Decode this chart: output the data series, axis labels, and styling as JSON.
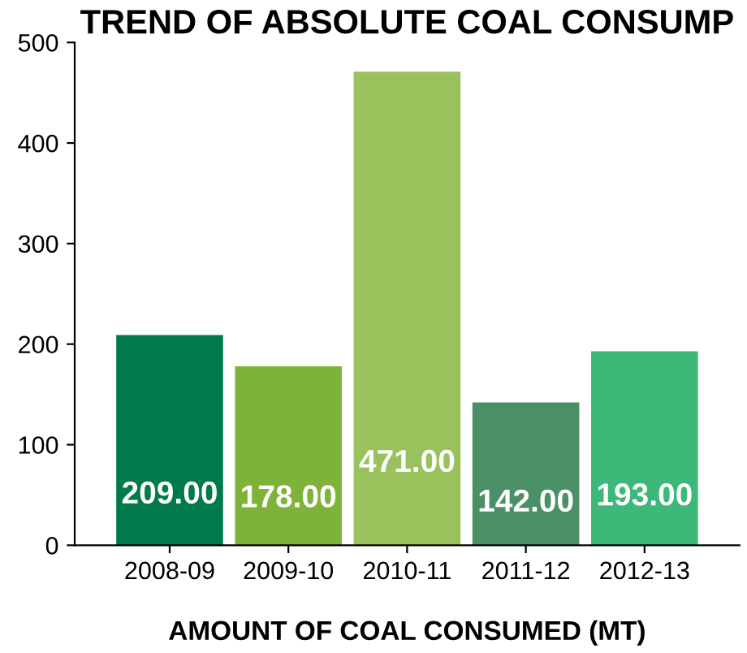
{
  "chart_data": {
    "type": "bar",
    "title": "TREND OF ABSOLUTE COAL CONSUMP",
    "xlabel": "AMOUNT OF COAL CONSUMED (MT)",
    "categories": [
      "2008-09",
      "2009-10",
      "2010-11",
      "2011-12",
      "2012-13"
    ],
    "values": [
      209,
      178,
      471,
      142,
      193
    ],
    "value_labels": [
      "209.00",
      "178.00",
      "471.00",
      "142.00",
      "193.00"
    ],
    "colors": [
      "#007a4a",
      "#7fb23a",
      "#9ac25c",
      "#4a8f66",
      "#3cb878"
    ],
    "ylim": [
      0,
      500
    ],
    "yticks": [
      0,
      100,
      200,
      300,
      400,
      500
    ],
    "grid": false,
    "legend": false
  }
}
